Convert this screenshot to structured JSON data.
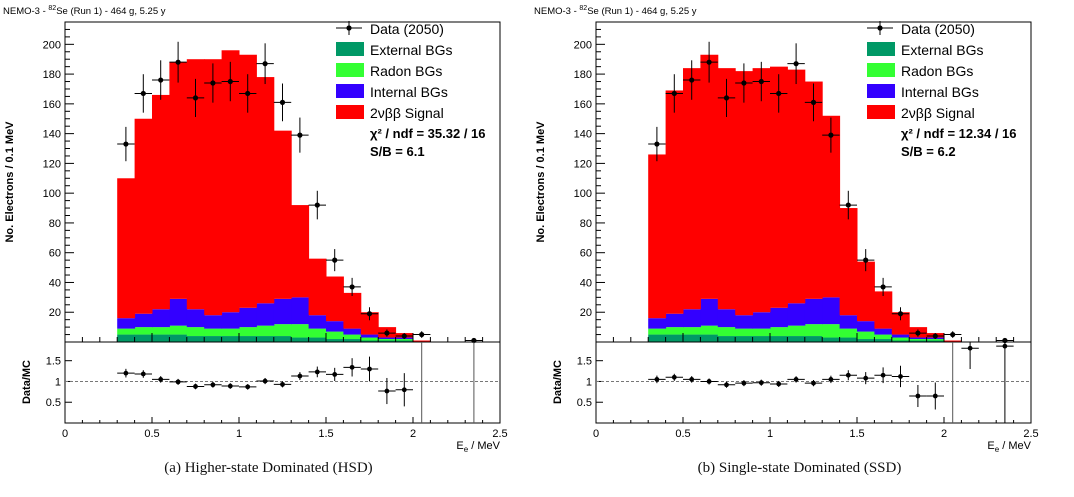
{
  "colors": {
    "signal": "#ff0000",
    "internal": "#3300ff",
    "radon": "#33ff33",
    "external": "#009966",
    "data": "#000000"
  },
  "chart_data": [
    {
      "type": "bar",
      "stacked": true,
      "title": "NEMO-3 - 82Se (Run 1) - 464 g, 5.25 y",
      "title_parts": {
        "pre": "NEMO-3 - ",
        "sup": "82",
        "post": "Se (Run 1) - 464 g, 5.25 y"
      },
      "xlabel": "E_e / MeV",
      "xlabel_parts": {
        "main": "E",
        "sub": "e",
        "tail": " / MeV"
      },
      "ylabel": "No. Electrons / 0.1 MeV",
      "ratio_ylabel": "Data/MC",
      "xlim": [
        0,
        2.5
      ],
      "ylim": [
        0,
        215
      ],
      "ratio_ylim": [
        0,
        1.95
      ],
      "x_ticks": [
        "0",
        "0.5",
        "1",
        "1.5",
        "2",
        "2.5"
      ],
      "y_ticks": [
        "20",
        "40",
        "60",
        "80",
        "100",
        "120",
        "140",
        "160",
        "180",
        "200"
      ],
      "ratio_ticks": [
        "0.5",
        "1",
        "1.5"
      ],
      "bin_edges": [
        0.3,
        0.4,
        0.5,
        0.6,
        0.7,
        0.8,
        0.9,
        1.0,
        1.1,
        1.2,
        1.3,
        1.4,
        1.5,
        1.6,
        1.7,
        1.8,
        1.9,
        2.0,
        2.1,
        2.2,
        2.3,
        2.4
      ],
      "series": [
        {
          "name": "External BGs",
          "key": "external",
          "values": [
            5,
            5,
            5,
            5,
            4,
            4,
            4,
            4,
            4,
            4,
            3,
            3,
            2,
            2,
            1,
            1,
            1,
            0,
            0,
            0,
            0
          ]
        },
        {
          "name": "Radon BGs",
          "key": "radon",
          "values": [
            4,
            5,
            5,
            6,
            6,
            5,
            5,
            6,
            7,
            8,
            9,
            6,
            5,
            3,
            2,
            1,
            1,
            0,
            0,
            0,
            0
          ]
        },
        {
          "name": "Internal BGs",
          "key": "internal",
          "values": [
            7,
            9,
            12,
            18,
            12,
            9,
            11,
            13,
            15,
            17,
            18,
            9,
            7,
            4,
            2,
            1,
            1,
            0,
            0,
            0,
            0
          ]
        },
        {
          "name": "2νββ Signal",
          "key": "signal",
          "values": [
            94,
            131,
            144,
            159,
            168,
            172,
            176,
            170,
            152,
            113,
            62,
            38,
            30,
            24,
            15,
            7,
            3,
            1,
            0,
            0,
            0
          ]
        }
      ],
      "data_series": {
        "name": "Data (2050)",
        "x": [
          0.35,
          0.45,
          0.55,
          0.65,
          0.75,
          0.85,
          0.95,
          1.05,
          1.15,
          1.25,
          1.35,
          1.45,
          1.55,
          1.65,
          1.75,
          1.85,
          1.95,
          2.05,
          2.15,
          2.25,
          2.35
        ],
        "y": [
          133,
          167,
          176,
          188,
          164,
          174,
          175,
          167,
          187,
          161,
          139,
          92,
          55,
          37,
          19,
          6,
          4,
          5,
          0,
          0,
          1
        ],
        "ratio": [
          1.2,
          1.18,
          1.05,
          0.99,
          0.88,
          0.92,
          0.89,
          0.87,
          1.01,
          0.93,
          1.13,
          1.23,
          1.17,
          1.34,
          1.3,
          0.77,
          0.8,
          null,
          null,
          null,
          null
        ]
      },
      "legend_position": "top-right",
      "annotations": [
        "χ² / ndf = 35.32 / 16",
        "S/B = 6.1"
      ],
      "caption": "(a) Higher-state Dominated (HSD)"
    },
    {
      "type": "bar",
      "stacked": true,
      "title": "NEMO-3 - 82Se (Run 1) - 464 g, 5.25 y",
      "title_parts": {
        "pre": "NEMO-3 - ",
        "sup": "82",
        "post": "Se (Run 1) - 464 g, 5.25 y"
      },
      "xlabel": "E_e / MeV",
      "xlabel_parts": {
        "main": "E",
        "sub": "e",
        "tail": " / MeV"
      },
      "ylabel": "No. Electrons / 0.1 MeV",
      "ratio_ylabel": "Data/MC",
      "xlim": [
        0,
        2.5
      ],
      "ylim": [
        0,
        215
      ],
      "ratio_ylim": [
        0,
        1.95
      ],
      "x_ticks": [
        "0",
        "0.5",
        "1",
        "1.5",
        "2",
        "2.5"
      ],
      "y_ticks": [
        "20",
        "40",
        "60",
        "80",
        "100",
        "120",
        "140",
        "160",
        "180",
        "200"
      ],
      "ratio_ticks": [
        "0.5",
        "1",
        "1.5"
      ],
      "bin_edges": [
        0.3,
        0.4,
        0.5,
        0.6,
        0.7,
        0.8,
        0.9,
        1.0,
        1.1,
        1.2,
        1.3,
        1.4,
        1.5,
        1.6,
        1.7,
        1.8,
        1.9,
        2.0,
        2.1,
        2.2,
        2.3,
        2.4
      ],
      "series": [
        {
          "name": "External BGs",
          "key": "external",
          "values": [
            5,
            5,
            5,
            5,
            4,
            4,
            4,
            4,
            4,
            4,
            3,
            3,
            2,
            2,
            1,
            1,
            1,
            0,
            0,
            0,
            0
          ]
        },
        {
          "name": "Radon BGs",
          "key": "radon",
          "values": [
            4,
            5,
            5,
            6,
            6,
            5,
            5,
            6,
            7,
            8,
            9,
            6,
            5,
            3,
            2,
            1,
            1,
            0,
            0,
            0,
            0
          ]
        },
        {
          "name": "Internal BGs",
          "key": "internal",
          "values": [
            7,
            9,
            12,
            18,
            12,
            9,
            11,
            13,
            15,
            17,
            18,
            9,
            7,
            4,
            2,
            1,
            1,
            0,
            0,
            0,
            0
          ]
        },
        {
          "name": "2νββ Signal",
          "key": "signal",
          "values": [
            110,
            150,
            162,
            164,
            162,
            164,
            164,
            162,
            157,
            146,
            122,
            72,
            40,
            25,
            15,
            7,
            3,
            1,
            0,
            0,
            0
          ]
        }
      ],
      "data_series": {
        "name": "Data (2050)",
        "x": [
          0.35,
          0.45,
          0.55,
          0.65,
          0.75,
          0.85,
          0.95,
          1.05,
          1.15,
          1.25,
          1.35,
          1.45,
          1.55,
          1.65,
          1.75,
          1.85,
          1.95,
          2.05,
          2.15,
          2.25,
          2.35
        ],
        "y": [
          133,
          167,
          176,
          188,
          164,
          174,
          175,
          167,
          187,
          161,
          139,
          92,
          55,
          37,
          19,
          6,
          4,
          5,
          0,
          0,
          1
        ],
        "ratio": [
          1.05,
          1.1,
          1.05,
          1.0,
          0.92,
          0.96,
          0.97,
          0.94,
          1.05,
          0.96,
          1.05,
          1.15,
          1.08,
          1.15,
          1.12,
          0.65,
          0.65,
          null,
          1.8,
          null,
          1.85
        ]
      },
      "legend_position": "top-right",
      "annotations": [
        "χ² / ndf = 12.34 / 16",
        "S/B = 6.2"
      ],
      "caption": "(b) Single-state Dominated (SSD)"
    }
  ]
}
